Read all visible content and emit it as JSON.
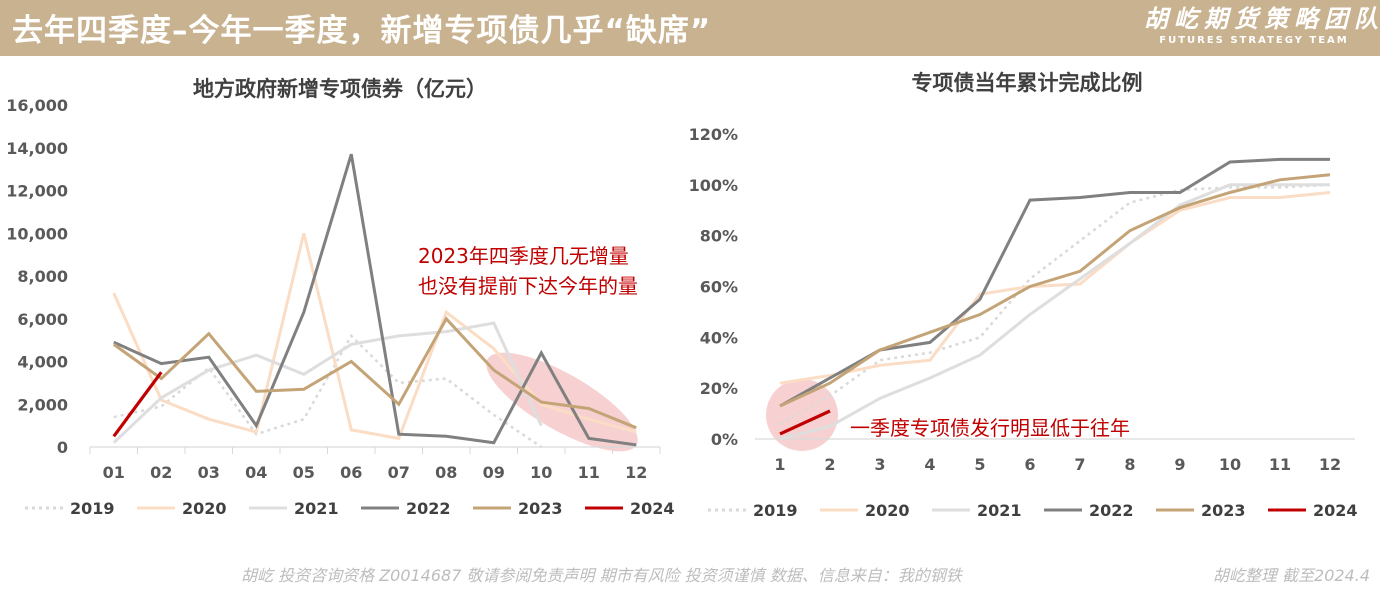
{
  "header": {
    "title": "去年四季度–今年一季度，新增专项债几乎“缺席”",
    "brand_cn": "胡屹期货策略团队",
    "brand_en": "FUTURES STRATEGY TEAM"
  },
  "footer": {
    "left": "胡屹 投资咨询资格 Z0014687  敬请参阅免责声明   期市有风险  投资须谨慎 数据、信息来自：我的钢铁",
    "right": "胡屹整理 截至2024.4"
  },
  "colors": {
    "2019": "#d9d9d9",
    "2020": "#fbdcc4",
    "2021": "#dedede",
    "2022": "#808080",
    "2023": "#c4a477",
    "2024": "#c00000",
    "annotation": "#c00000",
    "highlight": "#f2b8b8"
  },
  "chart_data": [
    {
      "type": "line",
      "title": "地方政府新增专项债券（亿元）",
      "categories": [
        "01",
        "02",
        "03",
        "04",
        "05",
        "06",
        "07",
        "08",
        "09",
        "10",
        "11",
        "12"
      ],
      "ylim": [
        0,
        16000
      ],
      "yticks": [
        "0",
        "2,000",
        "4,000",
        "6,000",
        "8,000",
        "10,000",
        "12,000",
        "14,000",
        "16,000"
      ],
      "grid": false,
      "legend": "bottom",
      "series": [
        {
          "name": "2019",
          "style": "dotted",
          "values": [
            1400,
            1900,
            3700,
            600,
            1300,
            5200,
            3000,
            3200,
            1500,
            0,
            null,
            null
          ]
        },
        {
          "name": "2020",
          "style": "solid",
          "values": [
            7200,
            2200,
            1300,
            700,
            10000,
            800,
            400,
            6300,
            4600,
            2000,
            1300,
            700
          ]
        },
        {
          "name": "2021",
          "style": "solid",
          "values": [
            200,
            2300,
            3600,
            4300,
            3400,
            4800,
            5200,
            5400,
            5800,
            1000,
            null,
            null
          ]
        },
        {
          "name": "2022",
          "style": "solid",
          "values": [
            4900,
            3900,
            4200,
            1000,
            6300,
            13700,
            600,
            500,
            200,
            4400,
            400,
            100
          ]
        },
        {
          "name": "2023",
          "style": "solid",
          "values": [
            4800,
            3200,
            5300,
            2600,
            2700,
            4000,
            2000,
            6000,
            3600,
            2100,
            1800,
            900
          ]
        },
        {
          "name": "2024",
          "style": "solid",
          "values": [
            500,
            3500,
            null,
            null,
            null,
            null,
            null,
            null,
            null,
            null,
            null,
            null
          ]
        }
      ],
      "annotation": [
        "2023年四季度几无增量",
        "也没有提前下达今年的量"
      ]
    },
    {
      "type": "line",
      "title": "专项债当年累计完成比例",
      "categories": [
        "1",
        "2",
        "3",
        "4",
        "5",
        "6",
        "7",
        "8",
        "9",
        "10",
        "11",
        "12"
      ],
      "ylim": [
        0,
        120
      ],
      "yticks": [
        "0%",
        "20%",
        "40%",
        "60%",
        "80%",
        "100%",
        "120%"
      ],
      "grid": false,
      "legend": "bottom",
      "series": [
        {
          "name": "2019",
          "style": "dotted",
          "values": [
            6,
            17,
            31,
            34,
            40,
            63,
            78,
            93,
            98,
            99,
            99,
            100
          ]
        },
        {
          "name": "2020",
          "style": "solid",
          "values": [
            22,
            25,
            29,
            31,
            57,
            60,
            61,
            77,
            90,
            95,
            95,
            97
          ]
        },
        {
          "name": "2021",
          "style": "solid",
          "values": [
            0,
            5,
            16,
            24,
            33,
            49,
            63,
            77,
            92,
            100,
            100,
            100
          ]
        },
        {
          "name": "2022",
          "style": "solid",
          "values": [
            13,
            24,
            35,
            38,
            55,
            94,
            95,
            97,
            97,
            109,
            110,
            110
          ]
        },
        {
          "name": "2023",
          "style": "solid",
          "values": [
            13,
            22,
            35,
            42,
            49,
            60,
            66,
            82,
            91,
            97,
            102,
            104
          ]
        },
        {
          "name": "2024",
          "style": "solid",
          "values": [
            2,
            11,
            null,
            null,
            null,
            null,
            null,
            null,
            null,
            null,
            null,
            null
          ]
        }
      ],
      "annotation": [
        "一季度专项债发行明显低于往年"
      ]
    }
  ]
}
